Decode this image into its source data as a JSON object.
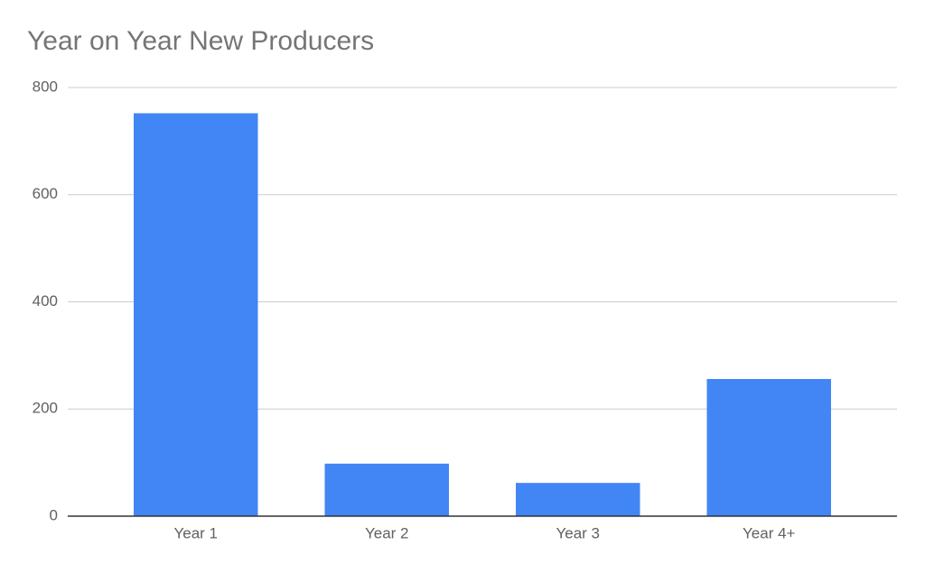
{
  "chart_data": {
    "type": "bar",
    "title": "Year on Year New Producers",
    "categories": [
      "Year 1",
      "Year 2",
      "Year 3",
      "Year 4+"
    ],
    "values": [
      752,
      98,
      62,
      256
    ],
    "color": "#4285f4",
    "ylim": [
      0,
      800
    ],
    "yticks": [
      0,
      200,
      400,
      600,
      800
    ],
    "grid": true
  }
}
